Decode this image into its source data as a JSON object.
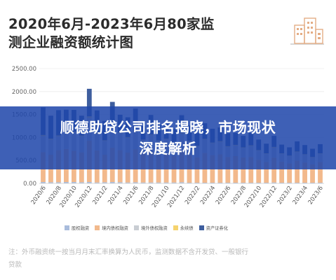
{
  "title_line1": "2020年6月-2023年6月80家监",
  "title_line2": "测企业融资额统计图",
  "banner": {
    "line1": "顺德助贷公司排名揭晓，市场现状",
    "line2": "深度解析"
  },
  "note_line1": "注：外币融资统一按当月月末汇率换算为人民币，监测数据不含开发贷、一般银行",
  "note_line2": "贷款",
  "icons": {
    "logo": "building-icon"
  },
  "colors": {
    "blue": "#a9bcdc",
    "orange": "#f2b98c",
    "gray": "#c9cdd3",
    "yellow": "#f5d36e",
    "navy": "#3e5e9e",
    "banner": "#1e46aa"
  },
  "chart_data": {
    "type": "bar",
    "stacked": true,
    "title": "2020年6月-2023年6月80家监测企业融资额统计图",
    "ylim": [
      0,
      2500
    ],
    "yticks": [
      "0.00",
      "500.00",
      "1000.00",
      "1500.00",
      "2000.00",
      "2500.00"
    ],
    "grid": true,
    "legend_position": "bottom",
    "categories": [
      "2020/6",
      "2020/7",
      "2020/8",
      "2020/9",
      "2020/10",
      "2020/11",
      "2020/12",
      "2021/1",
      "2021/2",
      "2021/3",
      "2021/4",
      "2021/5",
      "2021/6",
      "2021/7",
      "2021/8",
      "2021/9",
      "2021/10",
      "2021/11",
      "2021/12",
      "2022/1",
      "2022/2",
      "2022/3",
      "2022/4",
      "2022/5",
      "2022/6",
      "2022/7",
      "2022/8",
      "2022/9",
      "2022/10",
      "2022/11",
      "2022/12",
      "2023/1",
      "2023/2",
      "2023/3",
      "2023/4",
      "2023/5",
      "2023/6"
    ],
    "xtick_labels": [
      "2020/6",
      "2020/8",
      "2020/10",
      "2020/12",
      "2021/2",
      "2021/4",
      "2021/6",
      "2021/8",
      "2021/10",
      "2021/12",
      "2022/2",
      "2022/4",
      "2022/6",
      "2022/8",
      "2022/10",
      "2022/12",
      "2023/2",
      "2023/4",
      "2023/6"
    ],
    "series": [
      {
        "name": "股权融资",
        "color": "#a9bcdc",
        "values": [
          30,
          25,
          25,
          30,
          30,
          25,
          30,
          20,
          25,
          30,
          25,
          20,
          25,
          20,
          20,
          20,
          20,
          20,
          25,
          15,
          15,
          15,
          15,
          15,
          15,
          15,
          15,
          15,
          15,
          15,
          20,
          15,
          15,
          15,
          15,
          15,
          15
        ]
      },
      {
        "name": "境内债权融资",
        "color": "#f2b98c",
        "values": [
          650,
          600,
          700,
          720,
          680,
          650,
          900,
          700,
          600,
          750,
          700,
          650,
          720,
          620,
          680,
          600,
          620,
          580,
          700,
          600,
          550,
          650,
          600,
          620,
          560,
          580,
          550,
          560,
          500,
          450,
          540,
          460,
          420,
          480,
          440,
          400,
          450
        ]
      },
      {
        "name": "境外债权融资",
        "color": "#c9cdd3",
        "values": [
          350,
          330,
          300,
          380,
          400,
          350,
          500,
          360,
          300,
          420,
          370,
          320,
          380,
          300,
          350,
          300,
          320,
          280,
          360,
          300,
          240,
          290,
          260,
          270,
          220,
          230,
          210,
          240,
          200,
          180,
          220,
          170,
          160,
          190,
          170,
          150,
          180
        ]
      },
      {
        "name": "永续债",
        "color": "#f5d36e",
        "values": [
          25,
          20,
          20,
          25,
          20,
          20,
          30,
          20,
          15,
          25,
          20,
          20,
          25,
          15,
          20,
          15,
          15,
          15,
          20,
          15,
          15,
          15,
          15,
          15,
          15,
          15,
          10,
          15,
          10,
          10,
          15,
          10,
          10,
          10,
          10,
          10,
          10
        ]
      },
      {
        "name": "资产证券化",
        "color": "#3e5e9e",
        "values": [
          600,
          500,
          550,
          450,
          470,
          430,
          600,
          490,
          420,
          550,
          380,
          430,
          480,
          300,
          420,
          350,
          330,
          290,
          380,
          330,
          270,
          340,
          300,
          300,
          280,
          260,
          250,
          270,
          230,
          210,
          240,
          190,
          180,
          220,
          200,
          180,
          200
        ]
      }
    ]
  }
}
